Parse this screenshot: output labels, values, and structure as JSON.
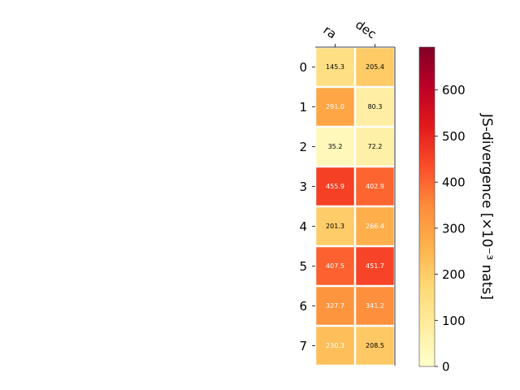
{
  "chart_data": {
    "type": "heatmap",
    "x_labels": [
      "ra",
      "dec"
    ],
    "y_labels": [
      "0",
      "1",
      "2",
      "3",
      "4",
      "5",
      "6",
      "7"
    ],
    "values": [
      [
        145.3,
        205.4
      ],
      [
        291.0,
        80.3
      ],
      [
        35.2,
        72.2
      ],
      [
        455.9,
        402.9
      ],
      [
        201.3,
        266.4
      ],
      [
        407.5,
        451.7
      ],
      [
        327.7,
        341.2
      ],
      [
        230.3,
        208.5
      ]
    ],
    "value_labels": [
      [
        "145.3",
        "205.4"
      ],
      [
        "291.0",
        "80.3"
      ],
      [
        "35.2",
        "72.2"
      ],
      [
        "455.9",
        "402.9"
      ],
      [
        "201.3",
        "266.4"
      ],
      [
        "407.5",
        "451.7"
      ],
      [
        "327.7",
        "341.2"
      ],
      [
        "230.3",
        "208.5"
      ]
    ],
    "colorbar": {
      "label": "JS-divergence [×10⁻³ nats]",
      "range": [
        0,
        693
      ],
      "ticks": [
        0,
        100,
        200,
        300,
        400,
        500,
        600
      ],
      "tick_labels": [
        "0",
        "100",
        "200",
        "300",
        "400",
        "500",
        "600"
      ],
      "colormap": "YlOrRd"
    },
    "grid": false
  }
}
